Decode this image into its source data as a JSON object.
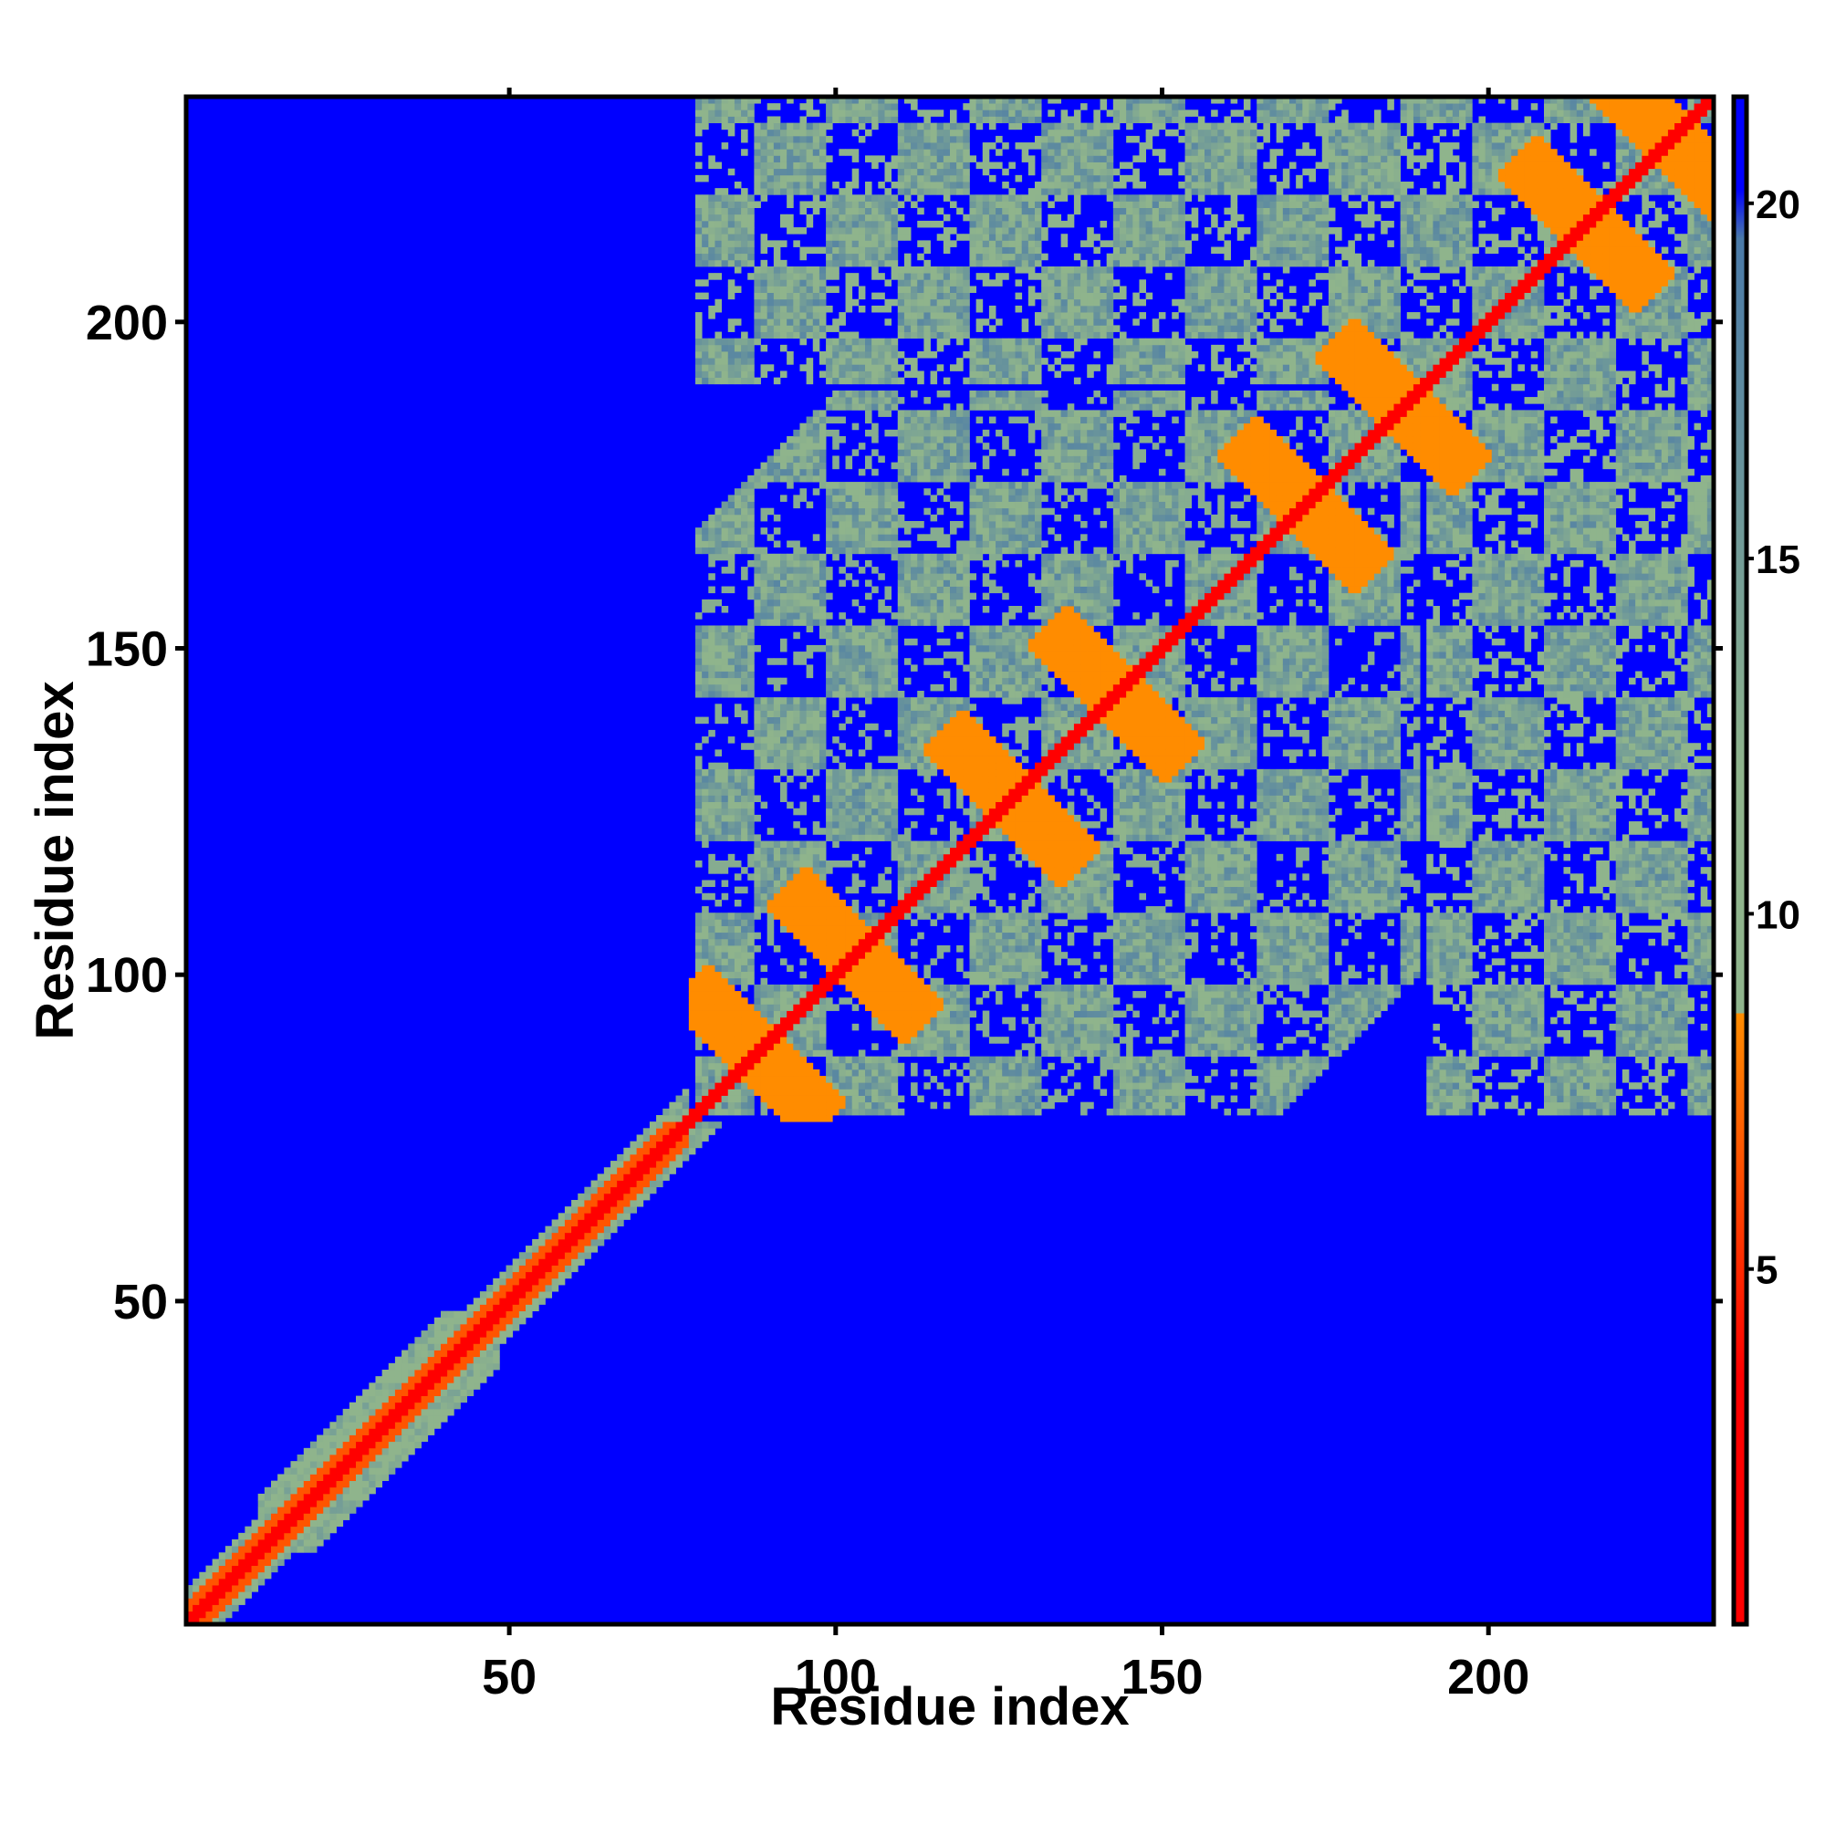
{
  "chart_data": {
    "type": "heatmap",
    "title": "",
    "xlabel": "Residue index",
    "ylabel": "Residue index",
    "n_residues": 234,
    "xlim": [
      0.5,
      234.5
    ],
    "ylim": [
      0.5,
      234.5
    ],
    "x_ticks": [
      50,
      100,
      150,
      200
    ],
    "y_ticks": [
      50,
      100,
      150,
      200
    ],
    "colorbar": {
      "range": [
        0,
        21.5
      ],
      "ticks": [
        5,
        10,
        15,
        20
      ],
      "colors": {
        "near": "#ff0000",
        "contact": "#ff8c00",
        "mid": "#8fb48c",
        "far_mid": "#4a7aa8",
        "far": "#0000ff"
      },
      "stops": [
        0,
        8.6,
        8.6,
        12,
        19.5,
        21.5
      ]
    },
    "matrix_description_segments": {
      "diagonal_band_width": 1.5,
      "secondary_structure_segments": [
        {
          "start": 12,
          "end": 28,
          "type": "helix"
        },
        {
          "start": 30,
          "end": 46,
          "type": "helix"
        },
        {
          "start": 80,
          "end": 96,
          "type": "strand"
        },
        {
          "start": 98,
          "end": 110,
          "type": "strand"
        },
        {
          "start": 118,
          "end": 134,
          "type": "strand"
        },
        {
          "start": 136,
          "end": 150,
          "type": "strand"
        },
        {
          "start": 164,
          "end": 178,
          "type": "strand"
        },
        {
          "start": 180,
          "end": 194,
          "type": "strand"
        },
        {
          "start": 206,
          "end": 220,
          "type": "strand"
        },
        {
          "start": 222,
          "end": 234,
          "type": "strand"
        }
      ]
    }
  }
}
